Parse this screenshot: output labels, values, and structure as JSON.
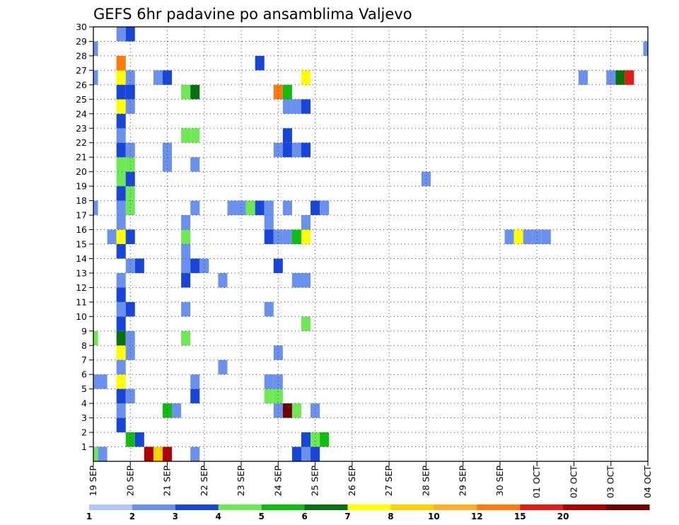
{
  "chart_data": {
    "type": "heatmap",
    "title": "GEFS 6hr padavine po ansamblima Valjevo",
    "xlabel": "",
    "ylabel": "",
    "x_tick_labels": [
      "19 SEP",
      "20 SEP",
      "21 SEP",
      "22 SEP",
      "23 SEP",
      "24 SEP",
      "25 SEP",
      "26 SEP",
      "27 SEP",
      "28 SEP",
      "29 SEP",
      "30 SEP",
      "01 OCT",
      "02 OCT",
      "03 OCT",
      "04 OCT"
    ],
    "x_steps": 60,
    "x_step_hours": 6,
    "y_tick_labels": [
      "1",
      "2",
      "3",
      "4",
      "5",
      "6",
      "7",
      "8",
      "9",
      "10",
      "11",
      "12",
      "13",
      "14",
      "15",
      "16",
      "17",
      "18",
      "19",
      "20",
      "21",
      "22",
      "23",
      "24",
      "25",
      "26",
      "27",
      "28",
      "29",
      "30"
    ],
    "y_range": [
      0,
      30
    ],
    "grid": true,
    "colorbar": {
      "labels": [
        "1",
        "2",
        "3",
        "4",
        "5",
        "6",
        "7",
        "8",
        "10",
        "12",
        "15",
        "20"
      ],
      "colors": [
        "#b4c6f6",
        "#6a91ee",
        "#1846d8",
        "#6ee854",
        "#12bc12",
        "#08700e",
        "#ffff00",
        "#ffd000",
        "#ffae2a",
        "#ff7a0a",
        "#e01e14",
        "#b00000",
        "#700000"
      ],
      "placement": "bottom"
    },
    "cells": [
      [
        0,
        0,
        3
      ],
      [
        1,
        0,
        1
      ],
      [
        6,
        0,
        11
      ],
      [
        7,
        0,
        7
      ],
      [
        8,
        0,
        11
      ],
      [
        11,
        0,
        1
      ],
      [
        22,
        0,
        2
      ],
      [
        23,
        0,
        1
      ],
      [
        24,
        0,
        2
      ],
      [
        4,
        1,
        4
      ],
      [
        5,
        1,
        2
      ],
      [
        23,
        1,
        2
      ],
      [
        24,
        1,
        3
      ],
      [
        25,
        1,
        4
      ],
      [
        3,
        2,
        2
      ],
      [
        3,
        3,
        1
      ],
      [
        8,
        3,
        4
      ],
      [
        9,
        3,
        1
      ],
      [
        20,
        3,
        1
      ],
      [
        21,
        3,
        12
      ],
      [
        22,
        3,
        3
      ],
      [
        24,
        3,
        1
      ],
      [
        3,
        4,
        2
      ],
      [
        4,
        4,
        1
      ],
      [
        11,
        4,
        2
      ],
      [
        19,
        4,
        3
      ],
      [
        20,
        4,
        3
      ],
      [
        0,
        5,
        1
      ],
      [
        1,
        5,
        1
      ],
      [
        3,
        5,
        6
      ],
      [
        11,
        5,
        1
      ],
      [
        19,
        5,
        1
      ],
      [
        20,
        5,
        1
      ],
      [
        3,
        6,
        1
      ],
      [
        14,
        6,
        1
      ],
      [
        3,
        7,
        6
      ],
      [
        4,
        7,
        1
      ],
      [
        20,
        7,
        1
      ],
      [
        0,
        8,
        3
      ],
      [
        3,
        8,
        5
      ],
      [
        4,
        8,
        1
      ],
      [
        10,
        8,
        3
      ],
      [
        3,
        9,
        2
      ],
      [
        23,
        9,
        3
      ],
      [
        3,
        10,
        1
      ],
      [
        4,
        10,
        2
      ],
      [
        10,
        10,
        1
      ],
      [
        19,
        10,
        1
      ],
      [
        3,
        11,
        2
      ],
      [
        3,
        12,
        1
      ],
      [
        10,
        12,
        2
      ],
      [
        14,
        12,
        1
      ],
      [
        22,
        12,
        1
      ],
      [
        23,
        12,
        1
      ],
      [
        4,
        13,
        1
      ],
      [
        5,
        13,
        2
      ],
      [
        10,
        13,
        1
      ],
      [
        11,
        13,
        2
      ],
      [
        12,
        13,
        1
      ],
      [
        20,
        13,
        2
      ],
      [
        3,
        14,
        2
      ],
      [
        10,
        14,
        1
      ],
      [
        2,
        15,
        1
      ],
      [
        3,
        15,
        6
      ],
      [
        4,
        15,
        2
      ],
      [
        10,
        15,
        3
      ],
      [
        19,
        15,
        2
      ],
      [
        20,
        15,
        1
      ],
      [
        21,
        15,
        1
      ],
      [
        22,
        15,
        4
      ],
      [
        23,
        15,
        6
      ],
      [
        45,
        15,
        1
      ],
      [
        46,
        15,
        6
      ],
      [
        47,
        15,
        1
      ],
      [
        48,
        15,
        1
      ],
      [
        49,
        15,
        1
      ],
      [
        3,
        16,
        1
      ],
      [
        10,
        16,
        1
      ],
      [
        19,
        16,
        1
      ],
      [
        23,
        16,
        1
      ],
      [
        0,
        17,
        1
      ],
      [
        3,
        17,
        1
      ],
      [
        4,
        17,
        3
      ],
      [
        11,
        17,
        1
      ],
      [
        15,
        17,
        1
      ],
      [
        16,
        17,
        1
      ],
      [
        17,
        17,
        3
      ],
      [
        18,
        17,
        2
      ],
      [
        19,
        17,
        1
      ],
      [
        21,
        17,
        1
      ],
      [
        24,
        17,
        2
      ],
      [
        25,
        17,
        1
      ],
      [
        3,
        18,
        2
      ],
      [
        4,
        18,
        3
      ],
      [
        3,
        19,
        3
      ],
      [
        4,
        19,
        2
      ],
      [
        36,
        19,
        1
      ],
      [
        3,
        20,
        3
      ],
      [
        4,
        20,
        3
      ],
      [
        8,
        20,
        1
      ],
      [
        11,
        20,
        1
      ],
      [
        3,
        21,
        2
      ],
      [
        4,
        21,
        1
      ],
      [
        8,
        21,
        1
      ],
      [
        20,
        21,
        1
      ],
      [
        21,
        21,
        2
      ],
      [
        22,
        21,
        1
      ],
      [
        23,
        21,
        2
      ],
      [
        3,
        22,
        1
      ],
      [
        10,
        22,
        3
      ],
      [
        11,
        22,
        3
      ],
      [
        21,
        22,
        2
      ],
      [
        3,
        23,
        2
      ],
      [
        3,
        24,
        6
      ],
      [
        4,
        24,
        1
      ],
      [
        21,
        24,
        1
      ],
      [
        22,
        24,
        1
      ],
      [
        23,
        24,
        2
      ],
      [
        3,
        25,
        2
      ],
      [
        4,
        25,
        2
      ],
      [
        10,
        25,
        3
      ],
      [
        11,
        25,
        5
      ],
      [
        20,
        25,
        9
      ],
      [
        21,
        25,
        4
      ],
      [
        0,
        26,
        1
      ],
      [
        3,
        26,
        6
      ],
      [
        4,
        26,
        1
      ],
      [
        7,
        26,
        1
      ],
      [
        8,
        26,
        2
      ],
      [
        23,
        26,
        6
      ],
      [
        53,
        26,
        1
      ],
      [
        56,
        26,
        1
      ],
      [
        57,
        26,
        5
      ],
      [
        58,
        26,
        10
      ],
      [
        3,
        27,
        9
      ],
      [
        18,
        27,
        2
      ],
      [
        0,
        28,
        1
      ],
      [
        60,
        28,
        1
      ],
      [
        3,
        29,
        1
      ],
      [
        4,
        29,
        2
      ]
    ]
  }
}
